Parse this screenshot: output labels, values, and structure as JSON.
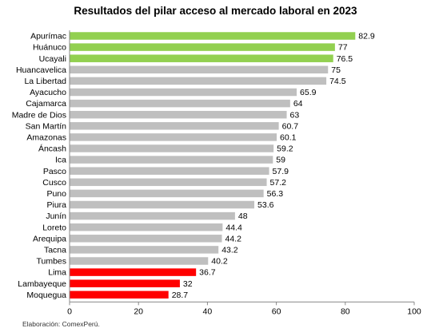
{
  "chart_data": {
    "type": "bar",
    "orientation": "horizontal",
    "title": "Resultados del pilar acceso al mercado laboral en 2023",
    "xlabel": "",
    "ylabel": "",
    "xlim": [
      0,
      100
    ],
    "x_ticks": [
      0,
      20,
      40,
      60,
      80,
      100
    ],
    "grid": false,
    "legend": "none",
    "categories": [
      "Apurímac",
      "Huánuco",
      "Ucayali",
      "Huancavelica",
      "La Libertad",
      "Ayacucho",
      "Cajamarca",
      "Madre de Dios",
      "San Martín",
      "Amazonas",
      "Áncash",
      "Ica",
      "Pasco",
      "Cusco",
      "Puno",
      "Piura",
      "Junín",
      "Loreto",
      "Arequipa",
      "Tacna",
      "Tumbes",
      "Lima",
      "Lambayeque",
      "Moquegua"
    ],
    "values": [
      82.9,
      77,
      76.5,
      75,
      74.5,
      65.9,
      64,
      63,
      60.7,
      60.1,
      59.2,
      59,
      57.9,
      57.2,
      56.3,
      53.6,
      48,
      44.4,
      44.2,
      43.2,
      40.2,
      36.7,
      32,
      28.7
    ],
    "value_labels": [
      "82.9",
      "77",
      "76.5",
      "75",
      "74.5",
      "65.9",
      "64",
      "63",
      "60.7",
      "60.1",
      "59.2",
      "59",
      "57.9",
      "57.2",
      "56.3",
      "53.6",
      "48",
      "44.4",
      "44.2",
      "43.2",
      "40.2",
      "36.7",
      "32",
      "28.7"
    ],
    "groups": [
      "top",
      "top",
      "top",
      "mid",
      "mid",
      "mid",
      "mid",
      "mid",
      "mid",
      "mid",
      "mid",
      "mid",
      "mid",
      "mid",
      "mid",
      "mid",
      "mid",
      "mid",
      "mid",
      "mid",
      "mid",
      "bottom",
      "bottom",
      "bottom"
    ],
    "colors": {
      "top": "#92d050",
      "mid": "#bfbfbf",
      "bottom": "#ff0000",
      "axis": "#888888"
    }
  },
  "footer": {
    "source": "Elaboración: ComexPerú."
  }
}
